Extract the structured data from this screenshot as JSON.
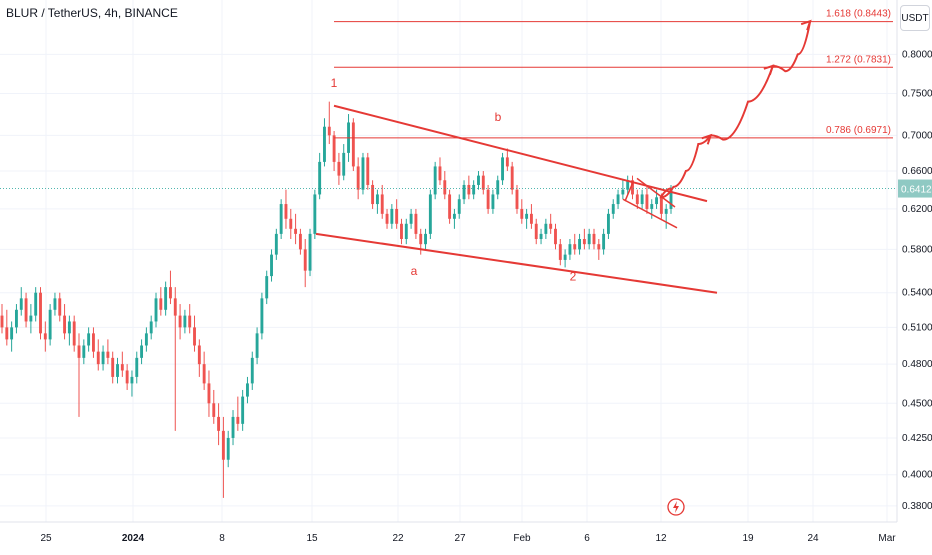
{
  "header": {
    "title": "BLUR / TetherUS, 4h, BINANCE",
    "unit": "USDT"
  },
  "chart_data": {
    "type": "candlestick",
    "y_axis": {
      "scale": "log",
      "range": [
        0.37,
        0.875
      ],
      "ticks": [
        "0.8000",
        "0.7500",
        "0.7000",
        "0.6600",
        "0.6200",
        "0.5800",
        "0.5400",
        "0.5100",
        "0.4800",
        "0.4500",
        "0.4250",
        "0.4000",
        "0.3800"
      ]
    },
    "x_axis": {
      "ticks": [
        "25",
        "2024",
        "8",
        "15",
        "22",
        "27",
        "Feb",
        "6",
        "12",
        "19",
        "24",
        "Mar"
      ],
      "bold_ticks": [
        "2024"
      ]
    },
    "current_price": {
      "value": 0.6412,
      "label": "0.6412"
    },
    "fib_levels": [
      {
        "ratio": "1.618",
        "price": 0.8443,
        "label": "1.618 (0.8443)"
      },
      {
        "ratio": "1.272",
        "price": 0.7831,
        "label": "1.272 (0.7831)"
      },
      {
        "ratio": "0.786",
        "price": 0.6971,
        "label": "0.786 (0.6971)"
      }
    ],
    "wave_labels": [
      "1",
      "a",
      "b",
      "2"
    ],
    "candles": [
      [
        0.52,
        0.53,
        0.505,
        0.51
      ],
      [
        0.51,
        0.525,
        0.495,
        0.5
      ],
      [
        0.5,
        0.515,
        0.49,
        0.51
      ],
      [
        0.51,
        0.53,
        0.505,
        0.525
      ],
      [
        0.525,
        0.545,
        0.52,
        0.535
      ],
      [
        0.535,
        0.54,
        0.51,
        0.515
      ],
      [
        0.515,
        0.53,
        0.505,
        0.52
      ],
      [
        0.52,
        0.545,
        0.515,
        0.54
      ],
      [
        0.54,
        0.545,
        0.5,
        0.505
      ],
      [
        0.505,
        0.515,
        0.49,
        0.5
      ],
      [
        0.5,
        0.53,
        0.495,
        0.525
      ],
      [
        0.525,
        0.54,
        0.52,
        0.535
      ],
      [
        0.535,
        0.54,
        0.515,
        0.52
      ],
      [
        0.52,
        0.53,
        0.5,
        0.505
      ],
      [
        0.505,
        0.52,
        0.495,
        0.515
      ],
      [
        0.515,
        0.52,
        0.49,
        0.495
      ],
      [
        0.495,
        0.505,
        0.44,
        0.485
      ],
      [
        0.485,
        0.5,
        0.48,
        0.495
      ],
      [
        0.495,
        0.51,
        0.49,
        0.505
      ],
      [
        0.505,
        0.51,
        0.485,
        0.49
      ],
      [
        0.49,
        0.5,
        0.475,
        0.48
      ],
      [
        0.48,
        0.495,
        0.475,
        0.49
      ],
      [
        0.49,
        0.5,
        0.48,
        0.485
      ],
      [
        0.485,
        0.49,
        0.465,
        0.47
      ],
      [
        0.47,
        0.485,
        0.465,
        0.48
      ],
      [
        0.48,
        0.49,
        0.47,
        0.475
      ],
      [
        0.475,
        0.48,
        0.46,
        0.465
      ],
      [
        0.465,
        0.475,
        0.455,
        0.47
      ],
      [
        0.47,
        0.49,
        0.465,
        0.485
      ],
      [
        0.485,
        0.5,
        0.48,
        0.495
      ],
      [
        0.495,
        0.51,
        0.49,
        0.505
      ],
      [
        0.505,
        0.52,
        0.5,
        0.515
      ],
      [
        0.515,
        0.54,
        0.51,
        0.535
      ],
      [
        0.535,
        0.545,
        0.52,
        0.525
      ],
      [
        0.525,
        0.55,
        0.52,
        0.545
      ],
      [
        0.545,
        0.56,
        0.53,
        0.535
      ],
      [
        0.535,
        0.545,
        0.43,
        0.52
      ],
      [
        0.52,
        0.53,
        0.5,
        0.51
      ],
      [
        0.51,
        0.525,
        0.505,
        0.52
      ],
      [
        0.52,
        0.53,
        0.505,
        0.51
      ],
      [
        0.51,
        0.52,
        0.49,
        0.495
      ],
      [
        0.495,
        0.5,
        0.47,
        0.48
      ],
      [
        0.48,
        0.49,
        0.46,
        0.465
      ],
      [
        0.465,
        0.475,
        0.44,
        0.45
      ],
      [
        0.45,
        0.46,
        0.435,
        0.44
      ],
      [
        0.44,
        0.45,
        0.42,
        0.43
      ],
      [
        0.43,
        0.44,
        0.385,
        0.41
      ],
      [
        0.41,
        0.43,
        0.405,
        0.425
      ],
      [
        0.425,
        0.445,
        0.42,
        0.44
      ],
      [
        0.44,
        0.455,
        0.43,
        0.435
      ],
      [
        0.435,
        0.46,
        0.43,
        0.455
      ],
      [
        0.455,
        0.47,
        0.45,
        0.465
      ],
      [
        0.465,
        0.49,
        0.46,
        0.485
      ],
      [
        0.485,
        0.51,
        0.48,
        0.505
      ],
      [
        0.505,
        0.54,
        0.5,
        0.535
      ],
      [
        0.535,
        0.56,
        0.53,
        0.555
      ],
      [
        0.555,
        0.58,
        0.55,
        0.575
      ],
      [
        0.575,
        0.6,
        0.57,
        0.595
      ],
      [
        0.595,
        0.63,
        0.59,
        0.625
      ],
      [
        0.625,
        0.64,
        0.6,
        0.61
      ],
      [
        0.61,
        0.62,
        0.59,
        0.6
      ],
      [
        0.6,
        0.615,
        0.585,
        0.595
      ],
      [
        0.595,
        0.6,
        0.575,
        0.58
      ],
      [
        0.58,
        0.59,
        0.545,
        0.56
      ],
      [
        0.56,
        0.6,
        0.555,
        0.595
      ],
      [
        0.595,
        0.64,
        0.59,
        0.635
      ],
      [
        0.635,
        0.68,
        0.63,
        0.67
      ],
      [
        0.67,
        0.72,
        0.665,
        0.71
      ],
      [
        0.71,
        0.74,
        0.69,
        0.7
      ],
      [
        0.7,
        0.705,
        0.66,
        0.67
      ],
      [
        0.67,
        0.68,
        0.645,
        0.655
      ],
      [
        0.655,
        0.69,
        0.65,
        0.68
      ],
      [
        0.68,
        0.725,
        0.67,
        0.715
      ],
      [
        0.715,
        0.72,
        0.66,
        0.665
      ],
      [
        0.665,
        0.675,
        0.63,
        0.64
      ],
      [
        0.64,
        0.68,
        0.635,
        0.675
      ],
      [
        0.675,
        0.68,
        0.64,
        0.645
      ],
      [
        0.645,
        0.65,
        0.62,
        0.625
      ],
      [
        0.625,
        0.64,
        0.615,
        0.635
      ],
      [
        0.635,
        0.645,
        0.61,
        0.615
      ],
      [
        0.615,
        0.62,
        0.6,
        0.605
      ],
      [
        0.605,
        0.625,
        0.6,
        0.62
      ],
      [
        0.62,
        0.63,
        0.6,
        0.605
      ],
      [
        0.605,
        0.61,
        0.585,
        0.59
      ],
      [
        0.59,
        0.61,
        0.585,
        0.605
      ],
      [
        0.605,
        0.62,
        0.6,
        0.615
      ],
      [
        0.615,
        0.62,
        0.59,
        0.595
      ],
      [
        0.595,
        0.6,
        0.575,
        0.585
      ],
      [
        0.585,
        0.6,
        0.58,
        0.595
      ],
      [
        0.595,
        0.64,
        0.59,
        0.635
      ],
      [
        0.635,
        0.67,
        0.63,
        0.665
      ],
      [
        0.665,
        0.675,
        0.645,
        0.65
      ],
      [
        0.65,
        0.66,
        0.63,
        0.635
      ],
      [
        0.635,
        0.64,
        0.605,
        0.61
      ],
      [
        0.61,
        0.62,
        0.6,
        0.615
      ],
      [
        0.615,
        0.635,
        0.61,
        0.63
      ],
      [
        0.63,
        0.65,
        0.625,
        0.645
      ],
      [
        0.645,
        0.655,
        0.63,
        0.635
      ],
      [
        0.635,
        0.65,
        0.63,
        0.645
      ],
      [
        0.645,
        0.66,
        0.64,
        0.655
      ],
      [
        0.655,
        0.66,
        0.635,
        0.64
      ],
      [
        0.64,
        0.645,
        0.615,
        0.62
      ],
      [
        0.62,
        0.64,
        0.615,
        0.635
      ],
      [
        0.635,
        0.655,
        0.63,
        0.65
      ],
      [
        0.65,
        0.68,
        0.645,
        0.675
      ],
      [
        0.675,
        0.685,
        0.66,
        0.665
      ],
      [
        0.665,
        0.67,
        0.635,
        0.64
      ],
      [
        0.64,
        0.645,
        0.615,
        0.62
      ],
      [
        0.62,
        0.63,
        0.605,
        0.61
      ],
      [
        0.61,
        0.62,
        0.6,
        0.615
      ],
      [
        0.615,
        0.625,
        0.6,
        0.605
      ],
      [
        0.605,
        0.61,
        0.585,
        0.59
      ],
      [
        0.59,
        0.6,
        0.585,
        0.595
      ],
      [
        0.595,
        0.61,
        0.59,
        0.605
      ],
      [
        0.605,
        0.615,
        0.595,
        0.6
      ],
      [
        0.6,
        0.605,
        0.58,
        0.585
      ],
      [
        0.585,
        0.59,
        0.565,
        0.57
      ],
      [
        0.57,
        0.58,
        0.563,
        0.575
      ],
      [
        0.575,
        0.59,
        0.57,
        0.585
      ],
      [
        0.585,
        0.595,
        0.575,
        0.58
      ],
      [
        0.58,
        0.595,
        0.575,
        0.59
      ],
      [
        0.59,
        0.6,
        0.58,
        0.585
      ],
      [
        0.585,
        0.6,
        0.58,
        0.595
      ],
      [
        0.595,
        0.6,
        0.58,
        0.585
      ],
      [
        0.585,
        0.59,
        0.57,
        0.58
      ],
      [
        0.58,
        0.6,
        0.575,
        0.595
      ],
      [
        0.595,
        0.62,
        0.59,
        0.615
      ],
      [
        0.615,
        0.63,
        0.61,
        0.625
      ],
      [
        0.625,
        0.64,
        0.62,
        0.635
      ],
      [
        0.635,
        0.65,
        0.63,
        0.64
      ],
      [
        0.64,
        0.655,
        0.635,
        0.65
      ],
      [
        0.65,
        0.655,
        0.63,
        0.635
      ],
      [
        0.635,
        0.64,
        0.62,
        0.625
      ],
      [
        0.625,
        0.64,
        0.62,
        0.635
      ],
      [
        0.635,
        0.645,
        0.615,
        0.62
      ],
      [
        0.62,
        0.63,
        0.61,
        0.625
      ],
      [
        0.625,
        0.64,
        0.62,
        0.632
      ],
      [
        0.632,
        0.636,
        0.61,
        0.615
      ],
      [
        0.615,
        0.625,
        0.6,
        0.62
      ],
      [
        0.62,
        0.645,
        0.615,
        0.6412
      ]
    ],
    "projection_path": [
      [
        "12",
        0.632
      ],
      [
        "13",
        0.643
      ],
      [
        "14",
        0.66
      ],
      [
        "15",
        0.69
      ],
      [
        "16",
        0.7
      ],
      [
        "17",
        0.695
      ],
      [
        "19",
        0.74
      ],
      [
        "21",
        0.785
      ],
      [
        "22",
        0.778
      ],
      [
        "23",
        0.8
      ],
      [
        "24",
        0.845
      ]
    ],
    "colors": {
      "up": "#26a69a",
      "down": "#ef5350",
      "drawing": "#e53935",
      "price_tag": "#8fc9c3"
    }
  }
}
